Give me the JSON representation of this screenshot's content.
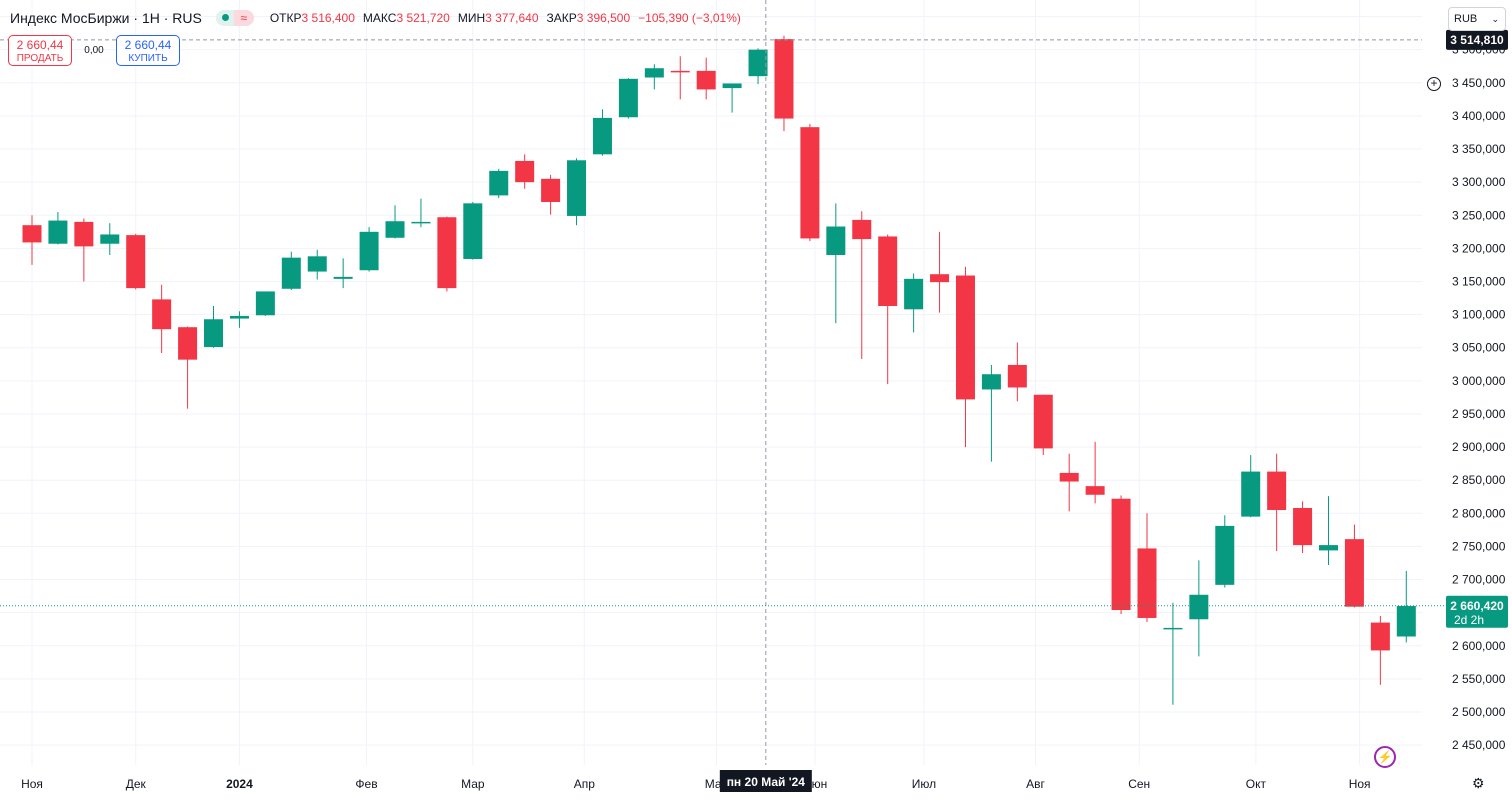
{
  "legend": {
    "title": "Индекс МосБиржи · 1H · RUS",
    "wave": "≈",
    "open_label": "ОТКР",
    "open_value": "3 516,400",
    "high_label": "МАКС",
    "high_value": "3 521,720",
    "low_label": "МИН",
    "low_value": "3 377,640",
    "close_label": "ЗАКР",
    "close_value": "3 396,500",
    "change": "−105,390 (−3,01%)"
  },
  "trade": {
    "sell_price": "2 660,44",
    "sell_label": "ПРОДАТЬ",
    "spread": "0,00",
    "buy_price": "2 660,44",
    "buy_label": "КУПИТЬ"
  },
  "currency": {
    "label": "RUB",
    "chevron": "chevron-down-icon"
  },
  "crosshair": {
    "price_label": "3 514,810",
    "time_label": "пн 20 Май '24",
    "price": 3514.81,
    "index": 28.3
  },
  "last_price": {
    "label": "2 660,420",
    "countdown": "2d 2h",
    "price": 2660.42
  },
  "colors": {
    "up": "#089981",
    "down": "#f23645",
    "grid": "#f0f3fa",
    "text": "#131722"
  },
  "chart_data": {
    "type": "candlestick",
    "ylim": [
      2420000,
      3575000
    ],
    "yticks": [
      2450000,
      2500000,
      2550000,
      2600000,
      2650000,
      2700000,
      2750000,
      2800000,
      2850000,
      2900000,
      2950000,
      3000000,
      3050000,
      3100000,
      3150000,
      3200000,
      3250000,
      3300000,
      3350000,
      3400000,
      3450000,
      3500000,
      3550000
    ],
    "ytick_labels": [
      "2 450,000",
      "2 500,000",
      "2 550,000",
      "2 600,000",
      "2 650,000",
      "2 700,000",
      "2 750,000",
      "2 800,000",
      "2 850,000",
      "2 900,000",
      "2 950,000",
      "3 000,000",
      "3 050,000",
      "3 100,000",
      "3 150,000",
      "3 200,000",
      "3 250,000",
      "3 300,000",
      "3 350,000",
      "3 400,000",
      "3 450,000",
      "3 500,000",
      "3 550,000"
    ],
    "x_labels": [
      {
        "label": "Ноя",
        "index": 0.0
      },
      {
        "label": "Дек",
        "index": 4.0
      },
      {
        "label": "2024",
        "index": 8.0,
        "bold": true
      },
      {
        "label": "Фев",
        "index": 12.9
      },
      {
        "label": "Мар",
        "index": 17.0
      },
      {
        "label": "Апр",
        "index": 21.3
      },
      {
        "label": "Май",
        "index": 26.4
      },
      {
        "label": "Июн",
        "index": 30.2
      },
      {
        "label": "Июл",
        "index": 34.4
      },
      {
        "label": "Авг",
        "index": 38.7
      },
      {
        "label": "Сен",
        "index": 42.7
      },
      {
        "label": "Окт",
        "index": 47.2
      },
      {
        "label": "Ноя",
        "index": 51.2
      }
    ],
    "candles": [
      {
        "o": 3235,
        "h": 3250,
        "l": 3175,
        "c": 3209
      },
      {
        "o": 3207,
        "h": 3255,
        "l": 3206,
        "c": 3242
      },
      {
        "o": 3240,
        "h": 3245,
        "l": 3150,
        "c": 3203
      },
      {
        "o": 3207,
        "h": 3238,
        "l": 3190,
        "c": 3221
      },
      {
        "o": 3220,
        "h": 3222,
        "l": 3138,
        "c": 3140
      },
      {
        "o": 3123,
        "h": 3145,
        "l": 3042,
        "c": 3078
      },
      {
        "o": 3081,
        "h": 3082,
        "l": 2958,
        "c": 3032
      },
      {
        "o": 3051,
        "h": 3113,
        "l": 3050,
        "c": 3093
      },
      {
        "o": 3094,
        "h": 3105,
        "l": 3080,
        "c": 3098
      },
      {
        "o": 3099,
        "h": 3132,
        "l": 3098,
        "c": 3135
      },
      {
        "o": 3139,
        "h": 3195,
        "l": 3137,
        "c": 3186
      },
      {
        "o": 3165,
        "h": 3198,
        "l": 3153,
        "c": 3188
      },
      {
        "o": 3154,
        "h": 3185,
        "l": 3140,
        "c": 3157
      },
      {
        "o": 3167,
        "h": 3232,
        "l": 3165,
        "c": 3225
      },
      {
        "o": 3216,
        "h": 3265,
        "l": 3215,
        "c": 3241
      },
      {
        "o": 3240,
        "h": 3275,
        "l": 3232,
        "c": 3240
      },
      {
        "o": 3247,
        "h": 3248,
        "l": 3135,
        "c": 3140
      },
      {
        "o": 3184,
        "h": 3270,
        "l": 3183,
        "c": 3268
      },
      {
        "o": 3280,
        "h": 3320,
        "l": 3276,
        "c": 3317
      },
      {
        "o": 3332,
        "h": 3342,
        "l": 3290,
        "c": 3300
      },
      {
        "o": 3305,
        "h": 3311,
        "l": 3251,
        "c": 3270
      },
      {
        "o": 3249,
        "h": 3336,
        "l": 3235,
        "c": 3333
      },
      {
        "o": 3342,
        "h": 3410,
        "l": 3340,
        "c": 3397
      },
      {
        "o": 3398,
        "h": 3457,
        "l": 3396,
        "c": 3456
      },
      {
        "o": 3458,
        "h": 3478,
        "l": 3440,
        "c": 3472
      },
      {
        "o": 3468,
        "h": 3490,
        "l": 3425,
        "c": 3466
      },
      {
        "o": 3468,
        "h": 3488,
        "l": 3425,
        "c": 3440
      },
      {
        "o": 3442,
        "h": 3447,
        "l": 3405,
        "c": 3449
      },
      {
        "o": 3460,
        "h": 3502,
        "l": 3448,
        "c": 3500
      },
      {
        "o": 3516,
        "h": 3521,
        "l": 3377,
        "c": 3396
      },
      {
        "o": 3383,
        "h": 3388,
        "l": 3211,
        "c": 3215
      },
      {
        "o": 3190,
        "h": 3268,
        "l": 3087,
        "c": 3233
      },
      {
        "o": 3243,
        "h": 3256,
        "l": 3033,
        "c": 3214
      },
      {
        "o": 3218,
        "h": 3221,
        "l": 2995,
        "c": 3113
      },
      {
        "o": 3108,
        "h": 3162,
        "l": 3073,
        "c": 3154
      },
      {
        "o": 3161,
        "h": 3225,
        "l": 3103,
        "c": 3149
      },
      {
        "o": 3159,
        "h": 3172,
        "l": 2900,
        "c": 2972
      },
      {
        "o": 2987,
        "h": 3024,
        "l": 2878,
        "c": 3010
      },
      {
        "o": 3024,
        "h": 3058,
        "l": 2969,
        "c": 2990
      },
      {
        "o": 2979,
        "h": 2979,
        "l": 2888,
        "c": 2898
      },
      {
        "o": 2861,
        "h": 2890,
        "l": 2803,
        "c": 2848
      },
      {
        "o": 2841,
        "h": 2908,
        "l": 2815,
        "c": 2828
      },
      {
        "o": 2822,
        "h": 2827,
        "l": 2648,
        "c": 2654
      },
      {
        "o": 2747,
        "h": 2800,
        "l": 2636,
        "c": 2642
      },
      {
        "o": 2625,
        "h": 2665,
        "l": 2511,
        "c": 2627
      },
      {
        "o": 2640,
        "h": 2729,
        "l": 2584,
        "c": 2677
      },
      {
        "o": 2692,
        "h": 2797,
        "l": 2688,
        "c": 2781
      },
      {
        "o": 2795,
        "h": 2888,
        "l": 2794,
        "c": 2863
      },
      {
        "o": 2863,
        "h": 2890,
        "l": 2743,
        "c": 2805
      },
      {
        "o": 2808,
        "h": 2818,
        "l": 2740,
        "c": 2752
      },
      {
        "o": 2744,
        "h": 2826,
        "l": 2722,
        "c": 2752
      },
      {
        "o": 2761,
        "h": 2783,
        "l": 2658,
        "c": 2659
      },
      {
        "o": 2635,
        "h": 2645,
        "l": 2541,
        "c": 2593
      },
      {
        "o": 2614,
        "h": 2713,
        "l": 2605,
        "c": 2660
      }
    ]
  }
}
